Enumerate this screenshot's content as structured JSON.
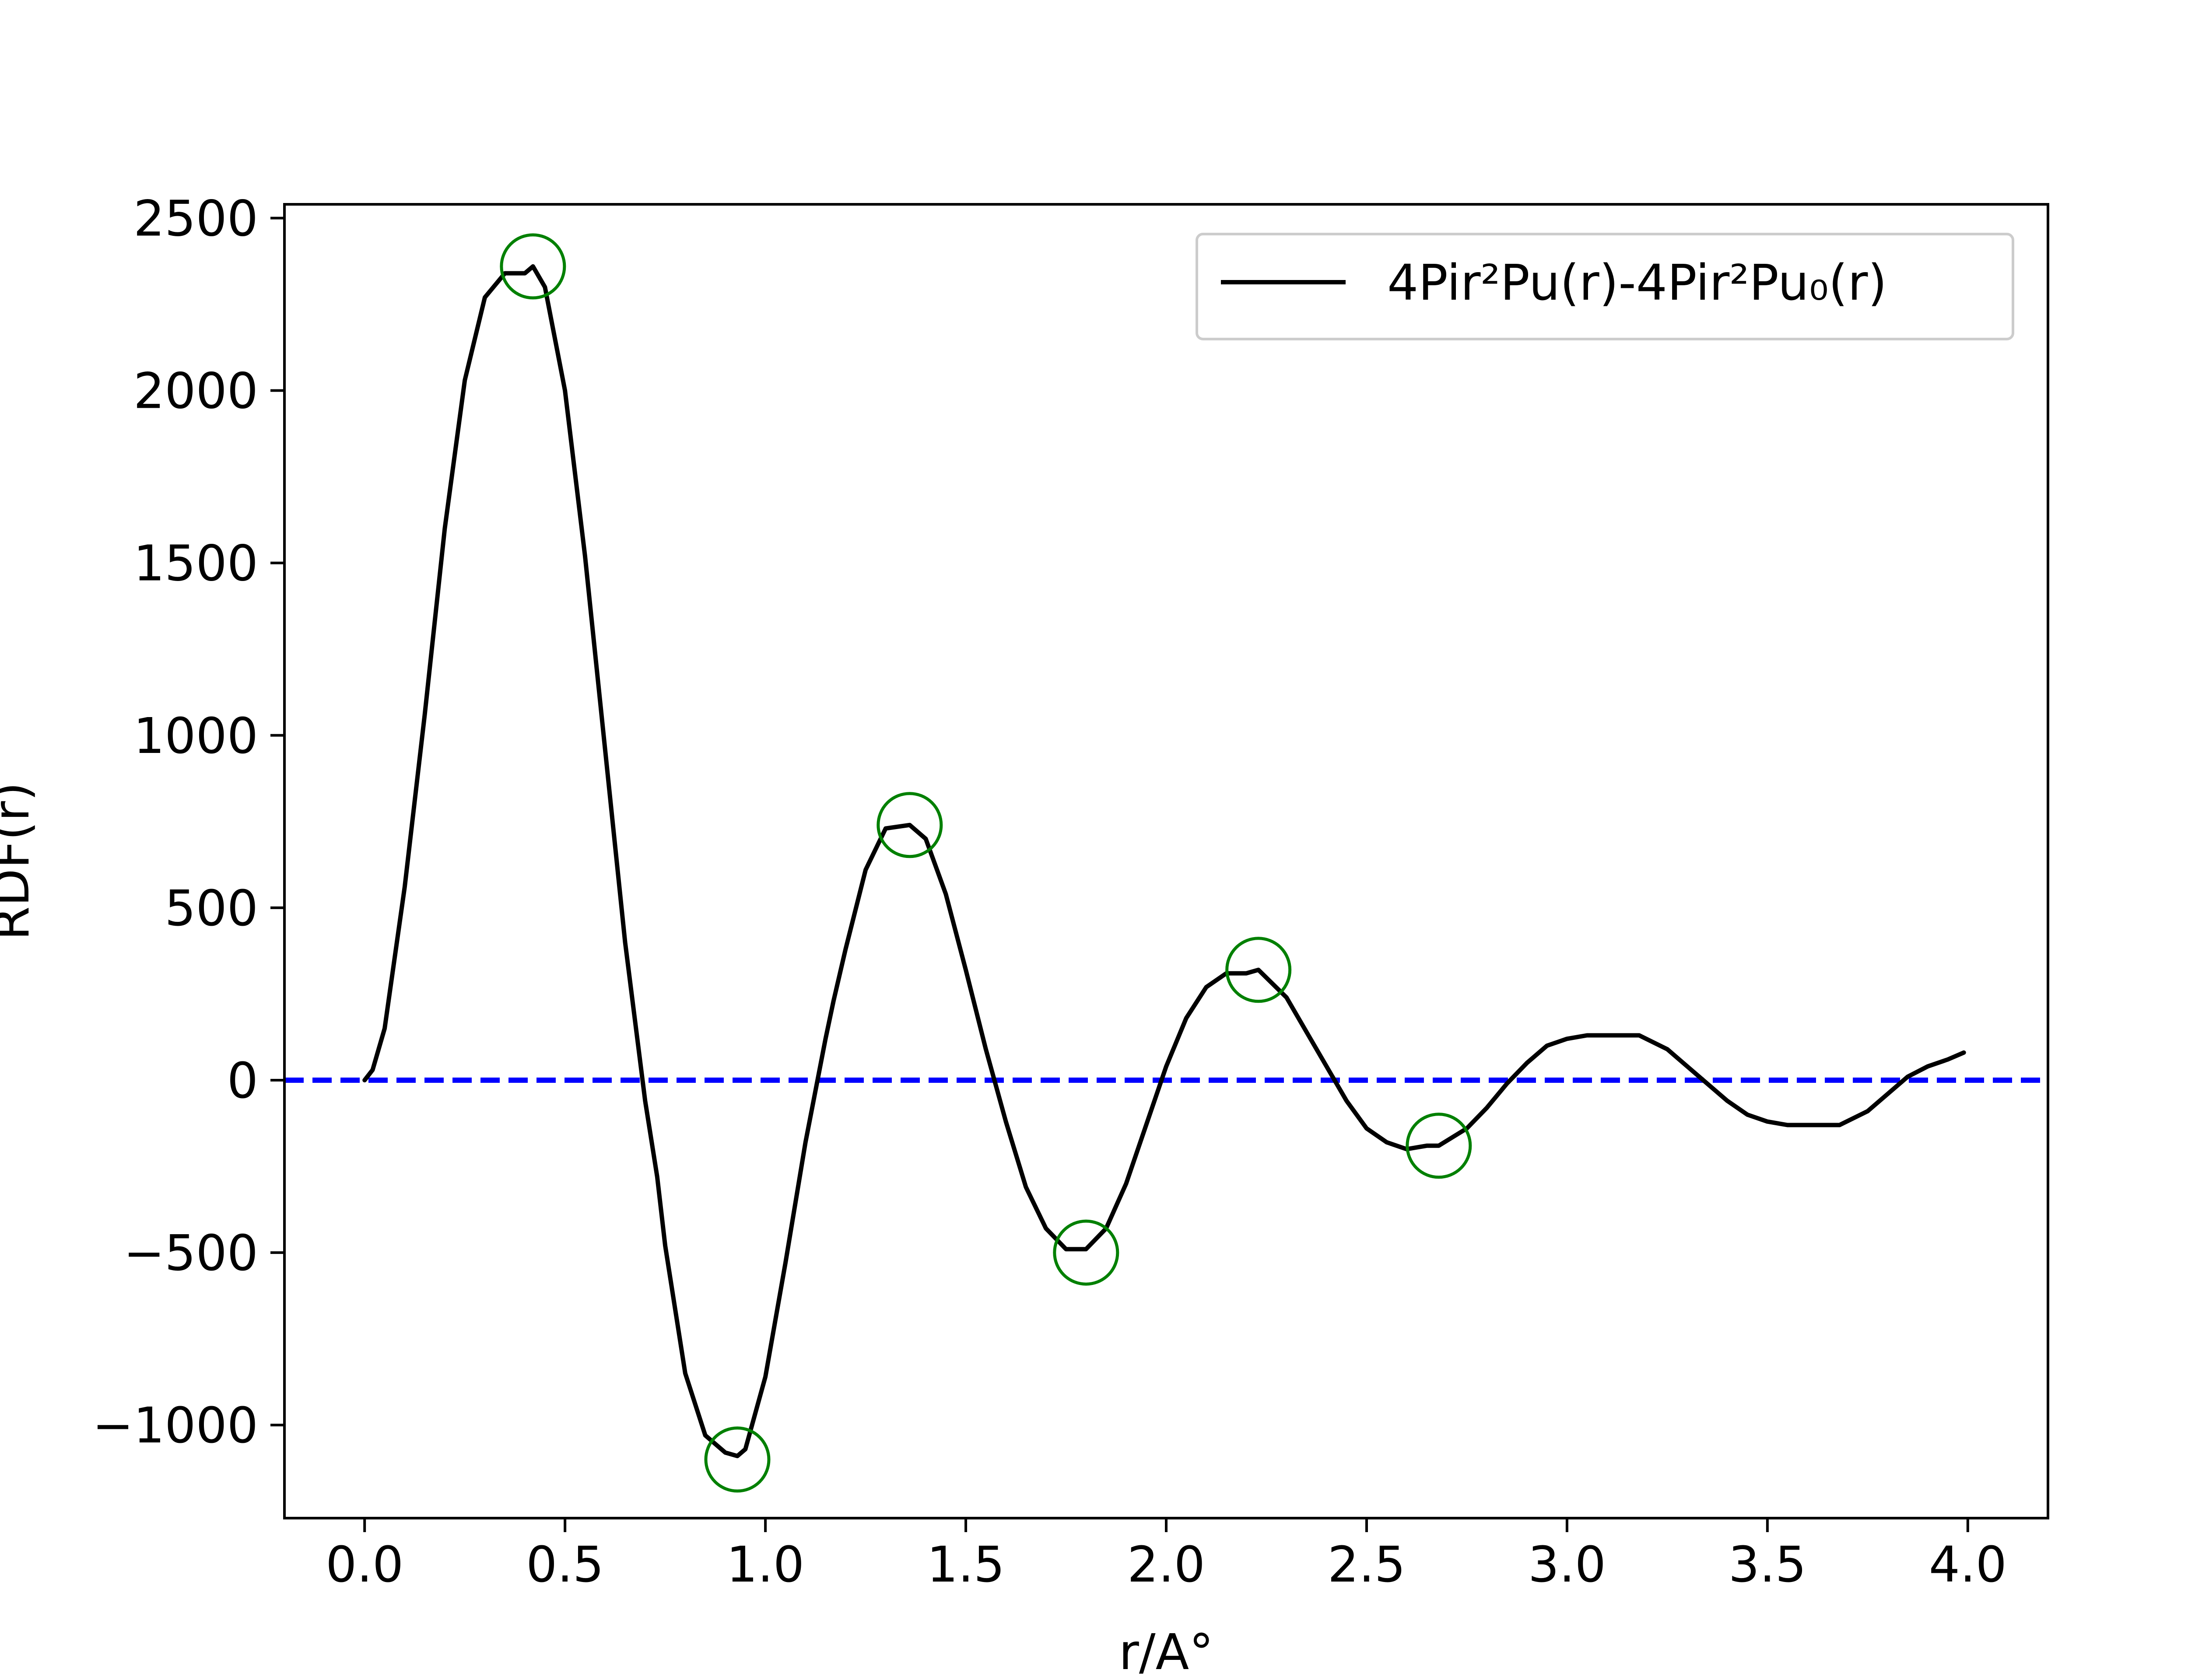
{
  "chart_data": {
    "type": "line",
    "title": "",
    "xlabel": "r/A°",
    "ylabel": "RDF(r)",
    "xlim": [
      -0.2,
      4.2
    ],
    "ylim": [
      -1270,
      2540
    ],
    "xticks": [
      0.0,
      0.5,
      1.0,
      1.5,
      2.0,
      2.5,
      3.0,
      3.5,
      4.0
    ],
    "xtick_labels": [
      "0.0",
      "0.5",
      "1.0",
      "1.5",
      "2.0",
      "2.5",
      "3.0",
      "3.5",
      "4.0"
    ],
    "yticks": [
      -1000,
      -500,
      0,
      500,
      1000,
      1500,
      2000,
      2500
    ],
    "ytick_labels": [
      "−1000",
      "−500",
      "0",
      "500",
      "1000",
      "1500",
      "2000",
      "2500"
    ],
    "grid": false,
    "legend_position": "top-right",
    "series": [
      {
        "name": "4Pir²Pu(r)-4Pir²Pu₀(r)",
        "color": "#000000",
        "style": "solid",
        "x": [
          0.0,
          0.02,
          0.05,
          0.1,
          0.15,
          0.2,
          0.25,
          0.3,
          0.35,
          0.4,
          0.42,
          0.45,
          0.5,
          0.55,
          0.6,
          0.65,
          0.7,
          0.73,
          0.75,
          0.8,
          0.85,
          0.9,
          0.93,
          0.95,
          1.0,
          1.05,
          1.1,
          1.15,
          1.17,
          1.2,
          1.25,
          1.3,
          1.36,
          1.4,
          1.45,
          1.5,
          1.55,
          1.6,
          1.65,
          1.7,
          1.75,
          1.8,
          1.85,
          1.9,
          1.95,
          2.0,
          2.05,
          2.1,
          2.15,
          2.2,
          2.23,
          2.3,
          2.35,
          2.4,
          2.45,
          2.5,
          2.55,
          2.6,
          2.65,
          2.68,
          2.75,
          2.8,
          2.85,
          2.9,
          2.95,
          3.0,
          3.05,
          3.1,
          3.15,
          3.18,
          3.25,
          3.3,
          3.35,
          3.4,
          3.45,
          3.5,
          3.55,
          3.6,
          3.65,
          3.68,
          3.75,
          3.8,
          3.85,
          3.9,
          3.95,
          3.99
        ],
        "y": [
          0,
          30,
          150,
          560,
          1060,
          1600,
          2030,
          2270,
          2340,
          2340,
          2360,
          2300,
          2000,
          1520,
          960,
          400,
          -60,
          -280,
          -480,
          -850,
          -1030,
          -1080,
          -1090,
          -1070,
          -860,
          -530,
          -180,
          120,
          230,
          380,
          610,
          730,
          740,
          700,
          540,
          320,
          90,
          -120,
          -310,
          -430,
          -490,
          -490,
          -430,
          -300,
          -130,
          40,
          180,
          270,
          310,
          310,
          320,
          240,
          140,
          40,
          -60,
          -140,
          -180,
          -200,
          -190,
          -190,
          -140,
          -80,
          -10,
          50,
          100,
          120,
          130,
          130,
          130,
          130,
          90,
          40,
          -10,
          -60,
          -100,
          -120,
          -130,
          -130,
          -130,
          -130,
          -90,
          -40,
          10,
          40,
          60,
          80
        ]
      }
    ],
    "reference_line": {
      "y": 0,
      "color": "#0000ff",
      "style": "dashed"
    },
    "markers": {
      "shape": "open-circle",
      "color": "#008000",
      "points": [
        {
          "x": 0.42,
          "y": 2360
        },
        {
          "x": 0.93,
          "y": -1100
        },
        {
          "x": 1.36,
          "y": 740
        },
        {
          "x": 1.8,
          "y": -500
        },
        {
          "x": 2.23,
          "y": 320
        },
        {
          "x": 2.68,
          "y": -190
        }
      ]
    },
    "colors": {
      "axes": "#000000",
      "legend_border": "#cccccc",
      "zero_line": "#0000ff",
      "markers": "#008000"
    }
  }
}
